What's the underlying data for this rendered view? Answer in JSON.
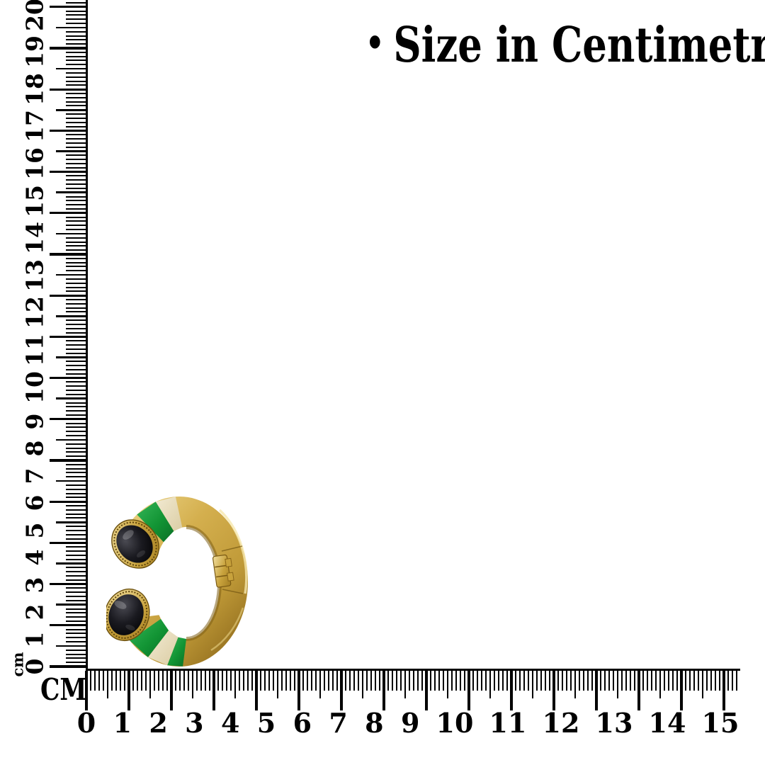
{
  "title": {
    "bullet": "•",
    "text": "Size in Centimetres"
  },
  "vertical_ruler": {
    "unit_label": "cm",
    "labels": [
      "0",
      "1",
      "2",
      "3",
      "4",
      "5",
      "6",
      "7",
      "8",
      "9",
      "10",
      "11",
      "12",
      "13",
      "14",
      "15",
      "16",
      "17",
      "18",
      "19",
      "20"
    ]
  },
  "horizontal_ruler": {
    "unit_label": "CM",
    "labels": [
      "0",
      "1",
      "2",
      "3",
      "4",
      "5",
      "6",
      "7",
      "8",
      "9",
      "10",
      "11",
      "12",
      "13",
      "14",
      "15"
    ]
  },
  "ruler_color": "#000000",
  "product": {
    "description": "Gold openable kada bangle with two black oval cabochon stones at the open ends, green enamel and cream enamel bands",
    "colors": {
      "gold": "#C8A13B",
      "gold_light": "#F0DC9A",
      "gold_dark": "#7A5A14",
      "stone_black": "#15151A",
      "enamel_green": "#1B9A3C",
      "enamel_cream": "#EDE3C6"
    }
  }
}
